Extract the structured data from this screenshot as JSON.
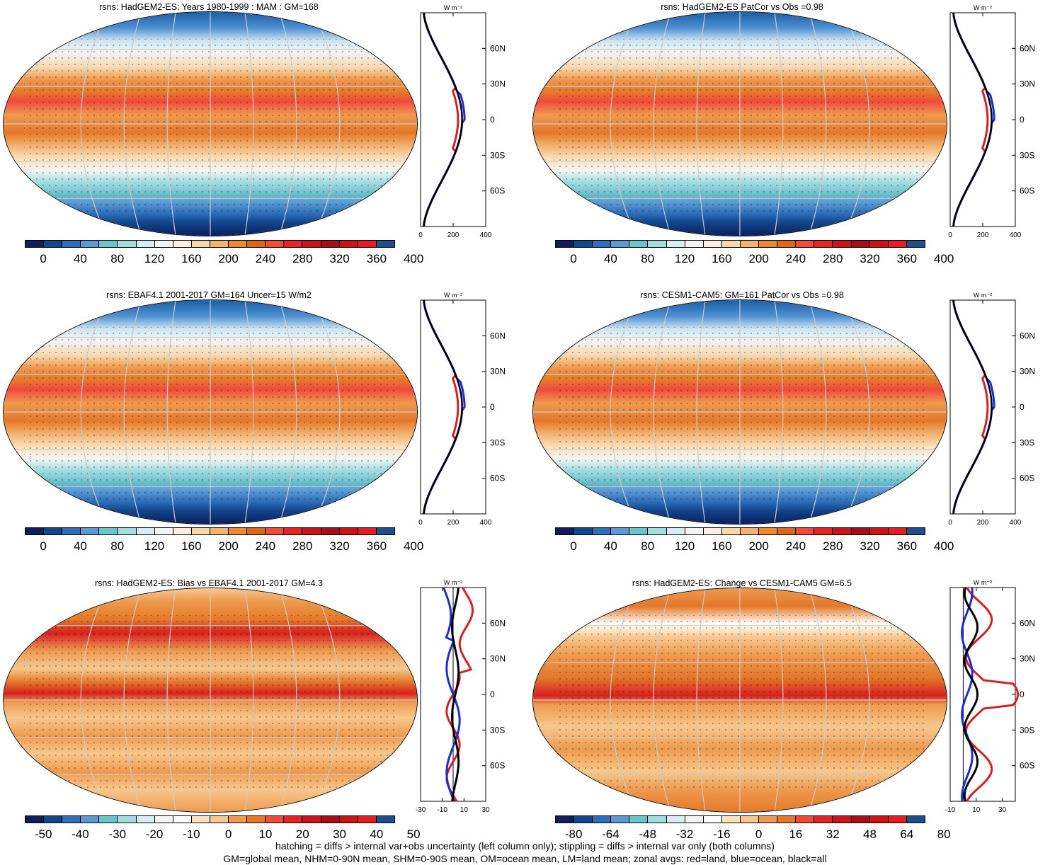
{
  "panels": [
    {
      "id": "p1",
      "title": "rsns: HadGEM2-ES: Years 1980-1999 : MAM : GM=168",
      "type": "abs",
      "colorbar_labels": [
        "0",
        "40",
        "80",
        "120",
        "160",
        "200",
        "240",
        "280",
        "320",
        "360",
        "400"
      ]
    },
    {
      "id": "p2",
      "title": "rsns: HadGEM2-ES PatCor vs Obs =0.98",
      "type": "abs",
      "colorbar_labels": [
        "0",
        "40",
        "80",
        "120",
        "160",
        "200",
        "240",
        "280",
        "320",
        "360",
        "400"
      ]
    },
    {
      "id": "p3",
      "title": "rsns: EBAF4.1 2001-2017 GM=164 Uncer=15 W/m2",
      "type": "abs",
      "colorbar_labels": [
        "0",
        "40",
        "80",
        "120",
        "160",
        "200",
        "240",
        "280",
        "320",
        "360",
        "400"
      ]
    },
    {
      "id": "p4",
      "title": "rsns: CESM1-CAM5: GM=161 PatCor vs Obs =0.98",
      "type": "abs",
      "colorbar_labels": [
        "0",
        "40",
        "80",
        "120",
        "160",
        "200",
        "240",
        "280",
        "320",
        "360",
        "400"
      ]
    },
    {
      "id": "p5",
      "title": "rsns: HadGEM2-ES: Bias vs EBAF4.1 2001-2017 GM=4.3",
      "type": "diff",
      "colorbar_labels": [
        "-50",
        "-40",
        "-30",
        "-20",
        "-10",
        "0",
        "10",
        "20",
        "30",
        "40",
        "50"
      ]
    },
    {
      "id": "p6",
      "title": "rsns: HadGEM2-ES: Change vs CESM1-CAM5 GM=6.5",
      "type": "diff2",
      "colorbar_labels": [
        "-80",
        "-64",
        "-48",
        "-32",
        "-16",
        "0",
        "16",
        "32",
        "48",
        "64",
        "80"
      ]
    }
  ],
  "profiles": {
    "unit_label": "W m⁻²",
    "lat_labels": [
      "60N",
      "30N",
      "0",
      "30S",
      "60S"
    ],
    "abs_ticks": [
      "0",
      "200",
      "400"
    ],
    "diff_ticks": [
      "-30",
      "-10",
      "10",
      "30"
    ],
    "diff2_ticks": [
      "-10",
      "10",
      "30"
    ]
  },
  "colors": {
    "abs_palette": [
      "#0d1e5f",
      "#11468c",
      "#2e6fb8",
      "#5b9bd5",
      "#6cc3c9",
      "#a4dde1",
      "#d6eef1",
      "#f2f4f5",
      "#fbf0e0",
      "#f7d8ac",
      "#f2b473",
      "#ea8a35",
      "#d8681b",
      "#f04a3c",
      "#e22525",
      "#c9151b",
      "#a50f15",
      "#cc1418",
      "#e01e24",
      "#1f4e8c"
    ],
    "diff_palette": [
      "#0d1e5f",
      "#11468c",
      "#2e6fb8",
      "#5b9bd5",
      "#6cc3c9",
      "#a4dde1",
      "#d6eef1",
      "#f2f4f5",
      "#ffffff",
      "#fbe3c0",
      "#f7c88c",
      "#ee9a4f",
      "#e4782a",
      "#f04a3c",
      "#e22525",
      "#c9151b",
      "#a50f15",
      "#cc1418",
      "#e01e24",
      "#1f4e8c"
    ],
    "land": "#d62020",
    "ocean": "#1b2dd9",
    "all": "#000000"
  },
  "footer": {
    "line1": "hatching = diffs > internal var+obs uncertainty (left column only); stippling = diffs > internal var only (both columns)",
    "line2": "GM=global mean, NHM=0-90N mean, SHM=0-90S mean, OM=ocean mean, LM=land mean; zonal avgs: red=land, blue=ocean, black=all"
  }
}
